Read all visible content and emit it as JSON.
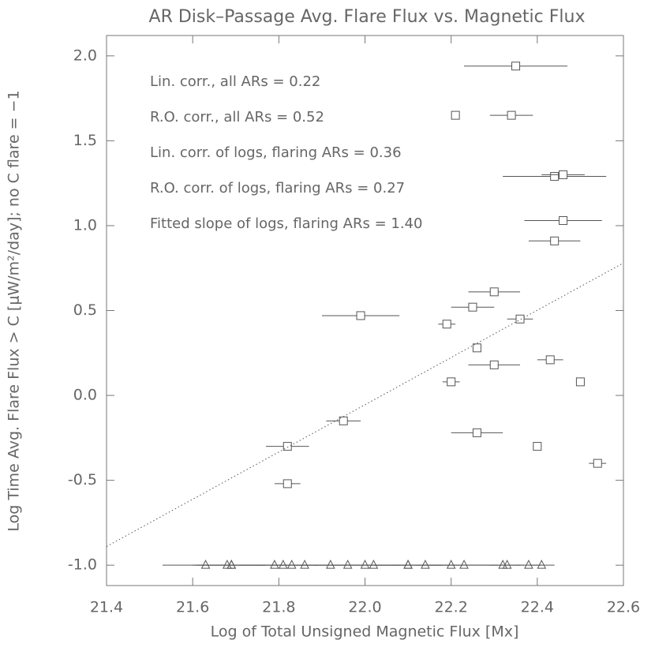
{
  "chart_data": {
    "type": "scatter",
    "title": "AR Disk–Passage Avg. Flare Flux vs. Magnetic Flux",
    "x_label": "Log of Total Unsigned Magnetic Flux [Mx]",
    "y_label": "Log Time Avg. Flare Flux > C [μW/m²/day]; no C flare = −1",
    "xlim": [
      21.4,
      22.6
    ],
    "ylim": [
      -1.12,
      2.12
    ],
    "xticks": [
      21.4,
      21.6,
      21.8,
      {
        "value": 22,
        "label": "22.0"
      },
      22.2,
      22.4,
      22.6
    ],
    "yticks": [
      {
        "value": -1,
        "label": "-1.0"
      },
      -0.5,
      {
        "value": 0,
        "label": "0.0"
      },
      0.5,
      {
        "value": 1,
        "label": "1.0"
      },
      1.5,
      {
        "value": 2,
        "label": "2.0"
      }
    ],
    "annotations": [
      "Lin. corr., all ARs =  0.22",
      "R.O. corr., all ARs =  0.52",
      "Lin. corr. of logs, flaring ARs =  0.36",
      "R.O. corr. of logs, flaring ARs =  0.27",
      "Fitted slope of logs, flaring ARs =  1.40"
    ],
    "series": [
      {
        "marker": "square",
        "color": "#555555",
        "x": [
          22.35,
          22.21,
          22.34,
          22.44,
          22.46,
          22.46,
          22.44,
          22.3,
          22.25,
          21.99,
          22.19,
          22.36,
          22.26,
          22.3,
          22.43,
          22.2,
          22.5,
          21.95,
          22.26,
          21.82,
          22.4,
          22.54,
          21.82
        ],
        "values": [
          1.94,
          1.65,
          1.65,
          1.29,
          1.3,
          1.03,
          0.91,
          0.61,
          0.52,
          0.47,
          0.42,
          0.45,
          0.28,
          0.18,
          0.21,
          0.08,
          0.08,
          -0.15,
          -0.22,
          -0.3,
          -0.3,
          -0.4,
          -0.52
        ],
        "xerr": [
          0.12,
          0.01,
          0.05,
          0.12,
          0.05,
          0.09,
          0.06,
          0.06,
          0.05,
          0.09,
          0.02,
          0.03,
          0.01,
          0.06,
          0.03,
          0.02,
          0.01,
          0.04,
          0.06,
          0.05,
          0.01,
          0.02,
          0.03
        ]
      },
      {
        "marker": "triangle",
        "color": "#555555",
        "x": [
          21.63,
          21.68,
          21.69,
          21.69,
          21.79,
          21.81,
          21.83,
          21.86,
          21.92,
          21.96,
          22.0,
          22.02,
          22.1,
          22.1,
          22.14,
          22.2,
          22.23,
          22.32,
          22.33,
          22.38,
          22.41
        ],
        "values": [
          -1,
          -1,
          -1,
          -1,
          -1,
          -1,
          -1,
          -1,
          -1,
          -1,
          -1,
          -1,
          -1,
          -1,
          -1,
          -1,
          -1,
          -1,
          -1,
          -1,
          -1
        ],
        "xerr": [
          0.1,
          0.08,
          0.08,
          0.08,
          0.08,
          0.08,
          0.08,
          0.08,
          0.08,
          0.08,
          0.08,
          0.08,
          0.08,
          0.08,
          0.08,
          0.08,
          0.08,
          0.04,
          0.04,
          0.03,
          0.03
        ]
      },
      {
        "marker": "none",
        "line": "dotted",
        "color": "#555555",
        "x": [
          21.4,
          22.6
        ],
        "values": [
          -0.89,
          0.78
        ]
      }
    ]
  }
}
